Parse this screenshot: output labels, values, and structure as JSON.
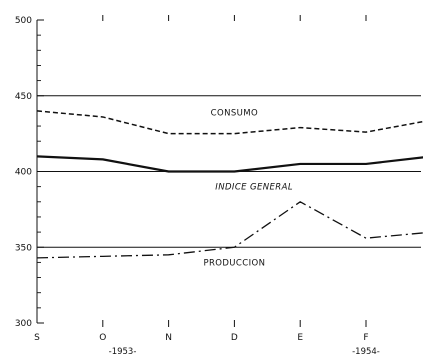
{
  "chart_data": {
    "type": "line",
    "title": "",
    "xlabel": "",
    "ylabel": "",
    "categories": [
      "S",
      "O",
      "N",
      "D",
      "E",
      "F",
      ""
    ],
    "year_labels": [
      {
        "text": "-1953-",
        "at_index": 1.3
      },
      {
        "text": "-1954-",
        "at_index": 5.0
      }
    ],
    "ylim": [
      300,
      500
    ],
    "yticks": [
      300,
      350,
      400,
      450,
      500
    ],
    "reference_lines": [
      350,
      400,
      450
    ],
    "series": [
      {
        "name": "CONSUMO",
        "style": "dashed",
        "values": [
          440,
          436,
          425,
          425,
          429,
          426,
          434
        ],
        "label_at_index": 3.0,
        "label_y": 439
      },
      {
        "name": "INDICE GENERAL",
        "style": "solid",
        "values": [
          410,
          408,
          400,
          400,
          405,
          405,
          410
        ],
        "label_at_index": 3.3,
        "label_y": 390,
        "italic": true
      },
      {
        "name": "PRODUCCION",
        "style": "dashdot",
        "values": [
          343,
          344,
          345,
          350,
          380,
          356,
          360
        ],
        "label_at_index": 3.0,
        "label_y": 340
      }
    ],
    "colors": {
      "line": "#111111",
      "background": "#ffffff"
    }
  }
}
